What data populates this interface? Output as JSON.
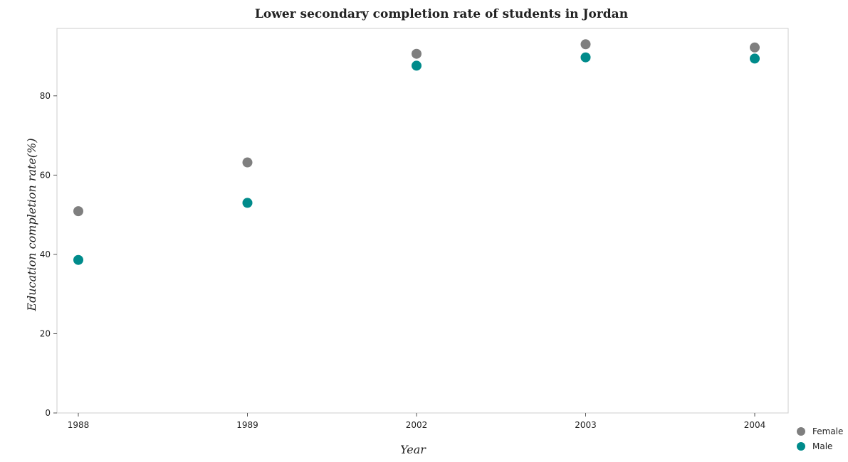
{
  "chart_data": {
    "type": "scatter",
    "title": "Lower secondary completion rate of students in Jordan",
    "xlabel": "Year",
    "ylabel": "Education completion rate(%)",
    "categories": [
      "1988",
      "1989",
      "2002",
      "2003",
      "2004"
    ],
    "y_ticks": [
      "0",
      "20",
      "40",
      "60",
      "80"
    ],
    "ylim": [
      0,
      97
    ],
    "grid": false,
    "legend_position": "bottom-right",
    "series": [
      {
        "name": "Female",
        "color": "#7f7f7f",
        "values": [
          50.9,
          63.2,
          90.6,
          93.0,
          92.2
        ]
      },
      {
        "name": "Male",
        "color": "#008b8b",
        "values": [
          38.6,
          53.0,
          87.6,
          89.7,
          89.4
        ]
      }
    ]
  }
}
